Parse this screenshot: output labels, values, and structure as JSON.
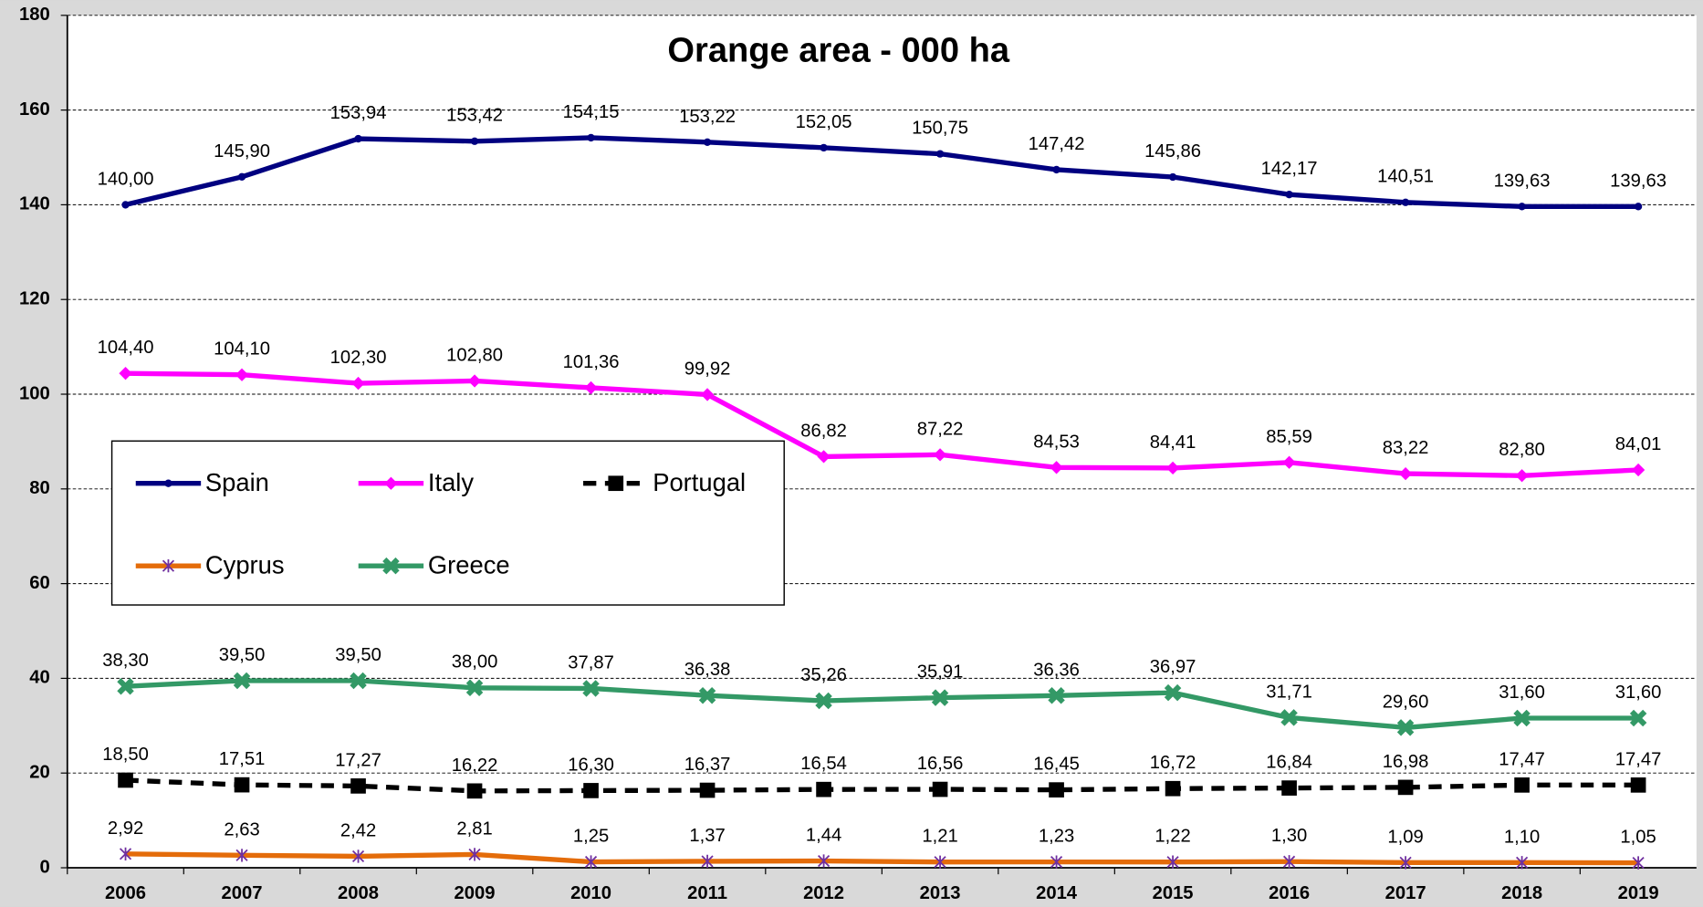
{
  "chart_data": {
    "type": "line",
    "title": "Orange area - 000 ha",
    "categories": [
      "2006",
      "2007",
      "2008",
      "2009",
      "2010",
      "2011",
      "2012",
      "2013",
      "2014",
      "2015",
      "2016",
      "2017",
      "2018",
      "2019"
    ],
    "ylim": [
      0,
      180
    ],
    "yticks": [
      0,
      20,
      40,
      60,
      80,
      100,
      120,
      140,
      160,
      180
    ],
    "grid": true,
    "series": [
      {
        "name": "Spain",
        "color": "#000080",
        "marker": "circle",
        "dashed": false,
        "values": [
          140.0,
          145.9,
          153.94,
          153.42,
          154.15,
          153.22,
          152.05,
          150.75,
          147.42,
          145.86,
          142.17,
          140.51,
          139.63,
          139.63
        ],
        "value_labels": [
          "140,00",
          "145,90",
          "153,94",
          "153,42",
          "154,15",
          "153,22",
          "152,05",
          "150,75",
          "147,42",
          "145,86",
          "142,17",
          "140,51",
          "139,63",
          "139,63"
        ]
      },
      {
        "name": "Italy",
        "color": "#ff00ff",
        "marker": "diamond",
        "dashed": false,
        "values": [
          104.4,
          104.1,
          102.3,
          102.8,
          101.36,
          99.92,
          86.82,
          87.22,
          84.53,
          84.41,
          85.59,
          83.22,
          82.8,
          84.01
        ],
        "value_labels": [
          "104,40",
          "104,10",
          "102,30",
          "102,80",
          "101,36",
          "99,92",
          "86,82",
          "87,22",
          "84,53",
          "84,41",
          "85,59",
          "83,22",
          "82,80",
          "84,01"
        ]
      },
      {
        "name": "Portugal",
        "color": "#000000",
        "marker": "square",
        "dashed": true,
        "values": [
          18.5,
          17.51,
          17.27,
          16.22,
          16.3,
          16.37,
          16.54,
          16.56,
          16.45,
          16.72,
          16.84,
          16.98,
          17.47,
          17.47
        ],
        "value_labels": [
          "18,50",
          "17,51",
          "17,27",
          "16,22",
          "16,30",
          "16,37",
          "16,54",
          "16,56",
          "16,45",
          "16,72",
          "16,84",
          "16,98",
          "17,47",
          "17,47"
        ]
      },
      {
        "name": "Cyprus",
        "color": "#e46c0a",
        "marker": "star",
        "marker_color": "#7030a0",
        "dashed": false,
        "values": [
          2.92,
          2.63,
          2.42,
          2.81,
          1.25,
          1.37,
          1.44,
          1.21,
          1.23,
          1.22,
          1.3,
          1.09,
          1.1,
          1.05
        ],
        "value_labels": [
          "2,92",
          "2,63",
          "2,42",
          "2,81",
          "1,25",
          "1,37",
          "1,44",
          "1,21",
          "1,23",
          "1,22",
          "1,30",
          "1,09",
          "1,10",
          "1,05"
        ]
      },
      {
        "name": "Greece",
        "color": "#339966",
        "marker": "cross",
        "dashed": false,
        "values": [
          38.3,
          39.5,
          39.5,
          38.0,
          37.87,
          36.38,
          35.26,
          35.91,
          36.36,
          36.97,
          31.71,
          29.6,
          31.6,
          31.6
        ],
        "value_labels": [
          "38,30",
          "39,50",
          "39,50",
          "38,00",
          "37,87",
          "36,38",
          "35,26",
          "35,91",
          "36,36",
          "36,97",
          "31,71",
          "29,60",
          "31,60",
          "31,60"
        ]
      }
    ]
  }
}
